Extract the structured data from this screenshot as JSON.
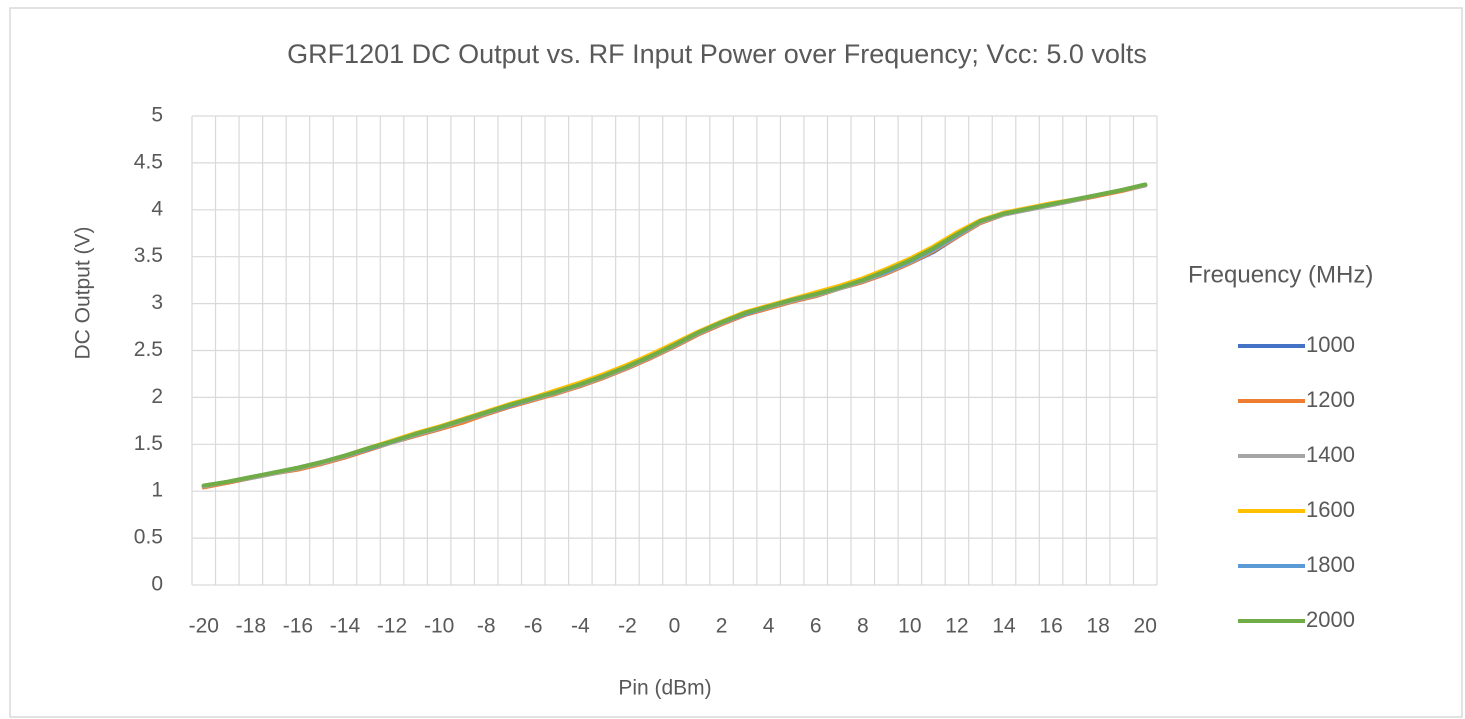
{
  "chart_data": {
    "type": "line",
    "title": "GRF1201 DC Output vs. RF Input Power over Frequency;  Vcc: 5.0 volts",
    "x_label": "Pin (dBm)",
    "y_label": "DC Output (V)",
    "legend_title": "Frequency (MHz)",
    "legend": "right",
    "grid": true,
    "categories": [
      -20,
      null,
      -18,
      null,
      -16,
      null,
      -14,
      null,
      -12,
      null,
      -10,
      null,
      -8,
      null,
      -6,
      null,
      -4,
      null,
      -2,
      null,
      0,
      null,
      2,
      null,
      4,
      null,
      6,
      null,
      8,
      null,
      10,
      null,
      12,
      null,
      14,
      null,
      16,
      null,
      18,
      null,
      20
    ],
    "ylim": [
      0,
      5
    ],
    "yticks": [
      0,
      0.5,
      1,
      1.5,
      2,
      2.5,
      3,
      3.5,
      4,
      4.5,
      5
    ],
    "series": [
      {
        "name": "1000",
        "color": "#4472c4",
        "values": [
          1.05,
          1.09,
          1.14,
          1.19,
          1.24,
          1.29,
          1.36,
          1.44,
          1.52,
          1.59,
          1.66,
          1.74,
          1.82,
          1.9,
          1.97,
          2.05,
          2.12,
          2.21,
          2.31,
          2.42,
          2.54,
          2.67,
          2.78,
          2.88,
          2.95,
          3.02,
          3.08,
          3.16,
          3.23,
          3.32,
          3.43,
          3.55,
          3.71,
          3.86,
          3.95,
          4.0,
          4.05,
          4.1,
          4.15,
          4.21,
          4.26
        ]
      },
      {
        "name": "1200",
        "color": "#ed7d31",
        "values": [
          1.04,
          1.09,
          1.14,
          1.19,
          1.23,
          1.29,
          1.36,
          1.44,
          1.52,
          1.59,
          1.66,
          1.73,
          1.82,
          1.9,
          1.97,
          2.04,
          2.12,
          2.21,
          2.31,
          2.42,
          2.54,
          2.67,
          2.78,
          2.88,
          2.95,
          3.02,
          3.08,
          3.16,
          3.23,
          3.32,
          3.43,
          3.56,
          3.71,
          3.86,
          3.95,
          4.0,
          4.05,
          4.1,
          4.15,
          4.2,
          4.26
        ]
      },
      {
        "name": "1400",
        "color": "#a5a5a5",
        "values": [
          1.05,
          1.1,
          1.14,
          1.19,
          1.24,
          1.3,
          1.37,
          1.45,
          1.52,
          1.6,
          1.67,
          1.75,
          1.83,
          1.91,
          1.98,
          2.05,
          2.13,
          2.22,
          2.32,
          2.43,
          2.55,
          2.68,
          2.79,
          2.89,
          2.96,
          3.03,
          3.09,
          3.16,
          3.24,
          3.33,
          3.44,
          3.57,
          3.72,
          3.87,
          3.95,
          4.0,
          4.05,
          4.1,
          4.16,
          4.21,
          4.26
        ]
      },
      {
        "name": "1600",
        "color": "#ffc000",
        "values": [
          1.06,
          1.1,
          1.15,
          1.2,
          1.25,
          1.31,
          1.38,
          1.46,
          1.54,
          1.62,
          1.69,
          1.77,
          1.85,
          1.93,
          2.0,
          2.08,
          2.16,
          2.25,
          2.35,
          2.46,
          2.58,
          2.7,
          2.81,
          2.91,
          2.98,
          3.05,
          3.12,
          3.19,
          3.27,
          3.37,
          3.48,
          3.61,
          3.76,
          3.89,
          3.97,
          4.02,
          4.07,
          4.11,
          4.16,
          4.21,
          4.27
        ]
      },
      {
        "name": "1800",
        "color": "#5b9bd5",
        "values": [
          1.06,
          1.1,
          1.15,
          1.2,
          1.25,
          1.31,
          1.38,
          1.45,
          1.53,
          1.61,
          1.68,
          1.76,
          1.84,
          1.91,
          1.99,
          2.06,
          2.14,
          2.23,
          2.33,
          2.44,
          2.56,
          2.69,
          2.8,
          2.89,
          2.97,
          3.04,
          3.1,
          3.17,
          3.25,
          3.34,
          3.45,
          3.58,
          3.73,
          3.88,
          3.96,
          4.01,
          4.06,
          4.11,
          4.16,
          4.21,
          4.27
        ]
      },
      {
        "name": "2000",
        "color": "#70ad47",
        "values": [
          1.06,
          1.1,
          1.15,
          1.2,
          1.25,
          1.31,
          1.38,
          1.46,
          1.53,
          1.61,
          1.68,
          1.76,
          1.84,
          1.92,
          1.99,
          2.06,
          2.14,
          2.23,
          2.33,
          2.44,
          2.56,
          2.69,
          2.8,
          2.9,
          2.97,
          3.04,
          3.1,
          3.17,
          3.25,
          3.35,
          3.46,
          3.59,
          3.74,
          3.88,
          3.96,
          4.01,
          4.06,
          4.11,
          4.16,
          4.21,
          4.27
        ]
      }
    ]
  }
}
